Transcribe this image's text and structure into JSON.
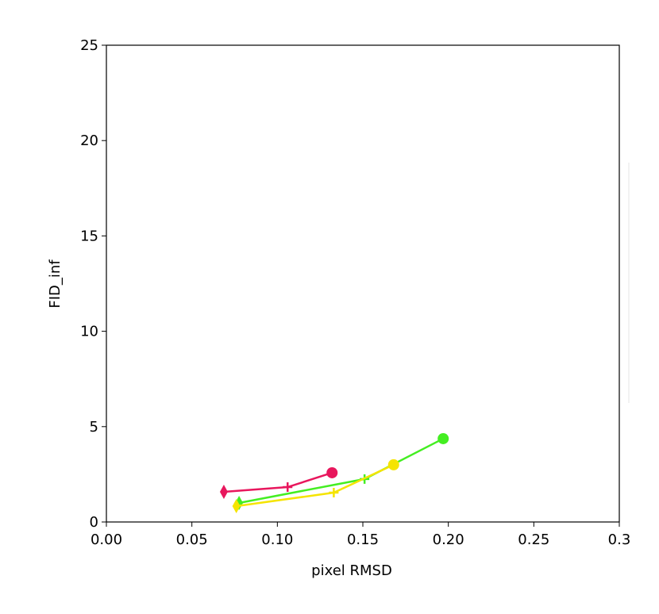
{
  "chart_data": {
    "type": "line",
    "xlabel": "pixel RMSD",
    "ylabel": "FID_inf",
    "xlim": [
      0,
      0.3
    ],
    "ylim": [
      0,
      25
    ],
    "xticks": [
      {
        "value": 0,
        "label": "0.00"
      },
      0.05,
      {
        "value": 0.1,
        "label": "0.10"
      },
      0.15,
      {
        "value": 0.2,
        "label": "0.20"
      },
      0.25,
      0.3
    ],
    "yticks": [
      0,
      5,
      10,
      15,
      20,
      25
    ],
    "markers": [
      "diamond",
      "plus",
      "circle"
    ],
    "series": [
      {
        "color": "#e8175d",
        "x": [
          0.0687,
          0.106,
          0.132
        ],
        "values": [
          1.58,
          1.83,
          2.58
        ]
      },
      {
        "color": "#44ee22",
        "x": [
          0.0776,
          0.151,
          0.197
        ],
        "values": [
          1.0,
          2.25,
          4.37
        ]
      },
      {
        "color": "#f5e400",
        "x": [
          0.076,
          0.133,
          0.168
        ],
        "values": [
          0.83,
          1.54,
          3.0
        ]
      }
    ]
  }
}
